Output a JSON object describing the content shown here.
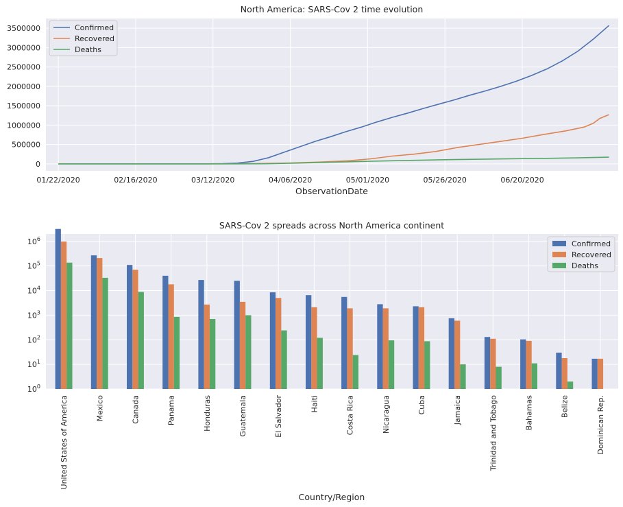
{
  "chart_data": [
    {
      "type": "line",
      "title": "North America: SARS-Cov 2 time evolution",
      "xlabel": "ObservationDate",
      "ylabel": "",
      "x_ticks": [
        "01/22/2020",
        "02/16/2020",
        "03/12/2020",
        "04/06/2020",
        "05/01/2020",
        "05/26/2020",
        "06/20/2020"
      ],
      "y_ticks": [
        "0",
        "500000",
        "1000000",
        "1500000",
        "2000000",
        "2500000",
        "3000000",
        "3500000"
      ],
      "xlim": [
        "01/18/2020",
        "07/21/2020"
      ],
      "ylim": [
        -180000,
        3750000
      ],
      "grid": true,
      "legend": "top-left",
      "series": [
        {
          "name": "Confirmed",
          "color": "#4c72b0",
          "points": [
            [
              "01/22/2020",
              0
            ],
            [
              "02/15/2020",
              20
            ],
            [
              "03/01/2020",
              100
            ],
            [
              "03/10/2020",
              1000
            ],
            [
              "03/15/2020",
              4000
            ],
            [
              "03/20/2020",
              20000
            ],
            [
              "03/25/2020",
              65000
            ],
            [
              "03/30/2020",
              160000
            ],
            [
              "04/04/2020",
              300000
            ],
            [
              "04/09/2020",
              440000
            ],
            [
              "04/14/2020",
              580000
            ],
            [
              "04/19/2020",
              700000
            ],
            [
              "04/24/2020",
              830000
            ],
            [
              "04/29/2020",
              950000
            ],
            [
              "05/04/2020",
              1080000
            ],
            [
              "05/09/2020",
              1200000
            ],
            [
              "05/14/2020",
              1310000
            ],
            [
              "05/19/2020",
              1430000
            ],
            [
              "05/24/2020",
              1540000
            ],
            [
              "05/29/2020",
              1650000
            ],
            [
              "06/03/2020",
              1770000
            ],
            [
              "06/08/2020",
              1880000
            ],
            [
              "06/13/2020",
              2000000
            ],
            [
              "06/18/2020",
              2130000
            ],
            [
              "06/23/2020",
              2280000
            ],
            [
              "06/28/2020",
              2450000
            ],
            [
              "07/03/2020",
              2660000
            ],
            [
              "07/08/2020",
              2910000
            ],
            [
              "07/13/2020",
              3220000
            ],
            [
              "07/18/2020",
              3570000
            ]
          ]
        },
        {
          "name": "Recovered",
          "color": "#dd8452",
          "points": [
            [
              "01/22/2020",
              0
            ],
            [
              "03/15/2020",
              500
            ],
            [
              "03/25/2020",
              5000
            ],
            [
              "04/05/2020",
              20000
            ],
            [
              "04/15/2020",
              45000
            ],
            [
              "04/25/2020",
              80000
            ],
            [
              "05/02/2020",
              130000
            ],
            [
              "05/09/2020",
              200000
            ],
            [
              "05/16/2020",
              250000
            ],
            [
              "05/23/2020",
              320000
            ],
            [
              "05/30/2020",
              420000
            ],
            [
              "06/06/2020",
              500000
            ],
            [
              "06/13/2020",
              580000
            ],
            [
              "06/20/2020",
              660000
            ],
            [
              "06/27/2020",
              760000
            ],
            [
              "07/04/2020",
              850000
            ],
            [
              "07/10/2020",
              950000
            ],
            [
              "07/13/2020",
              1050000
            ],
            [
              "07/15/2020",
              1170000
            ],
            [
              "07/18/2020",
              1270000
            ]
          ]
        },
        {
          "name": "Deaths",
          "color": "#55a868",
          "points": [
            [
              "01/22/2020",
              0
            ],
            [
              "03/10/2020",
              30
            ],
            [
              "03/20/2020",
              500
            ],
            [
              "03/30/2020",
              4000
            ],
            [
              "04/09/2020",
              20000
            ],
            [
              "04/19/2020",
              42000
            ],
            [
              "04/29/2020",
              62000
            ],
            [
              "05/09/2020",
              80000
            ],
            [
              "05/19/2020",
              97000
            ],
            [
              "05/29/2020",
              110000
            ],
            [
              "06/08/2020",
              122000
            ],
            [
              "06/18/2020",
              133000
            ],
            [
              "06/28/2020",
              143000
            ],
            [
              "07/08/2020",
              155000
            ],
            [
              "07/18/2020",
              172000
            ]
          ]
        }
      ]
    },
    {
      "type": "bar",
      "title": "SARS-Cov 2 spreads across North America continent",
      "xlabel": "Country/Region",
      "ylabel": "",
      "yscale": "log",
      "ylim": [
        1,
        2000000
      ],
      "y_ticks": [
        "10^0",
        "10^1",
        "10^2",
        "10^3",
        "10^4",
        "10^5",
        "10^6"
      ],
      "grid": true,
      "legend": "top-right",
      "categories": [
        "United States of America",
        "Mexico",
        "Canada",
        "Panama",
        "Honduras",
        "Guatemala",
        "El Salvador",
        "Haiti",
        "Costa Rica",
        "Nicaragua",
        "Cuba",
        "Jamaica",
        "Trinidad and Tobago",
        "Bahamas",
        "Belize",
        "Dominican Rep."
      ],
      "series": [
        {
          "name": "Confirmed",
          "color": "#4c72b0",
          "values": [
            3200000,
            270000,
            110000,
            40000,
            27000,
            25000,
            8500,
            6500,
            5500,
            2800,
            2300,
            750,
            130,
            104,
            30,
            17
          ]
        },
        {
          "name": "Recovered",
          "color": "#dd8452",
          "values": [
            980000,
            210000,
            70000,
            18000,
            2700,
            3500,
            5000,
            2100,
            1900,
            1900,
            2100,
            600,
            110,
            90,
            18,
            17
          ]
        },
        {
          "name": "Deaths",
          "color": "#55a868",
          "values": [
            137000,
            33000,
            8800,
            850,
            700,
            1000,
            240,
            120,
            24,
            95,
            87,
            10,
            8,
            11,
            2,
            0
          ]
        }
      ]
    }
  ]
}
